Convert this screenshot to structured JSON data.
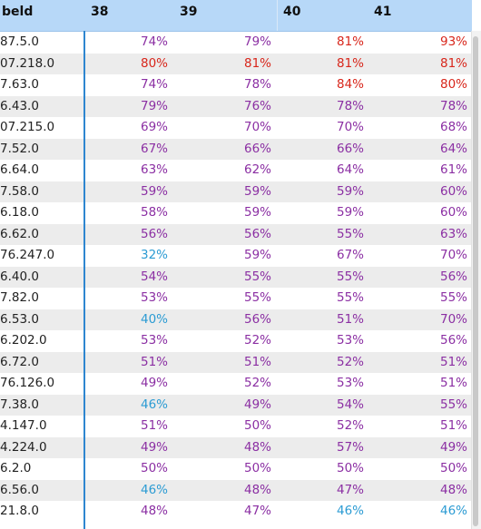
{
  "header": {
    "first_col": "beld",
    "weeks": [
      "38",
      "39",
      "40",
      "41"
    ]
  },
  "colors": {
    "purple": "#8b2fa3",
    "red": "#d8261b",
    "blue": "#2b9bd3",
    "header_bg": "#b7d8f8",
    "divider": "#2e86d0"
  },
  "rows": [
    {
      "label": "87.5.0",
      "values": [
        "74%",
        "79%",
        "81%",
        "93%"
      ],
      "colors": [
        "purple",
        "purple",
        "red",
        "red"
      ]
    },
    {
      "label": "07.218.0",
      "values": [
        "80%",
        "81%",
        "81%",
        "81%"
      ],
      "colors": [
        "red",
        "red",
        "red",
        "red"
      ]
    },
    {
      "label": "7.63.0",
      "values": [
        "74%",
        "78%",
        "84%",
        "80%"
      ],
      "colors": [
        "purple",
        "purple",
        "red",
        "red"
      ]
    },
    {
      "label": "6.43.0",
      "values": [
        "79%",
        "76%",
        "78%",
        "78%"
      ],
      "colors": [
        "purple",
        "purple",
        "purple",
        "purple"
      ]
    },
    {
      "label": "07.215.0",
      "values": [
        "69%",
        "70%",
        "70%",
        "68%"
      ],
      "colors": [
        "purple",
        "purple",
        "purple",
        "purple"
      ]
    },
    {
      "label": "7.52.0",
      "values": [
        "67%",
        "66%",
        "66%",
        "64%"
      ],
      "colors": [
        "purple",
        "purple",
        "purple",
        "purple"
      ]
    },
    {
      "label": "6.64.0",
      "values": [
        "63%",
        "62%",
        "64%",
        "61%"
      ],
      "colors": [
        "purple",
        "purple",
        "purple",
        "purple"
      ]
    },
    {
      "label": "7.58.0",
      "values": [
        "59%",
        "59%",
        "59%",
        "60%"
      ],
      "colors": [
        "purple",
        "purple",
        "purple",
        "purple"
      ]
    },
    {
      "label": "6.18.0",
      "values": [
        "58%",
        "59%",
        "59%",
        "60%"
      ],
      "colors": [
        "purple",
        "purple",
        "purple",
        "purple"
      ]
    },
    {
      "label": "6.62.0",
      "values": [
        "56%",
        "56%",
        "55%",
        "63%"
      ],
      "colors": [
        "purple",
        "purple",
        "purple",
        "purple"
      ]
    },
    {
      "label": "76.247.0",
      "values": [
        "32%",
        "59%",
        "67%",
        "70%"
      ],
      "colors": [
        "blue",
        "purple",
        "purple",
        "purple"
      ]
    },
    {
      "label": "6.40.0",
      "values": [
        "54%",
        "55%",
        "55%",
        "56%"
      ],
      "colors": [
        "purple",
        "purple",
        "purple",
        "purple"
      ]
    },
    {
      "label": "7.82.0",
      "values": [
        "53%",
        "55%",
        "55%",
        "55%"
      ],
      "colors": [
        "purple",
        "purple",
        "purple",
        "purple"
      ]
    },
    {
      "label": "6.53.0",
      "values": [
        "40%",
        "56%",
        "51%",
        "70%"
      ],
      "colors": [
        "blue",
        "purple",
        "purple",
        "purple"
      ]
    },
    {
      "label": "6.202.0",
      "values": [
        "53%",
        "52%",
        "53%",
        "56%"
      ],
      "colors": [
        "purple",
        "purple",
        "purple",
        "purple"
      ]
    },
    {
      "label": "6.72.0",
      "values": [
        "51%",
        "51%",
        "52%",
        "51%"
      ],
      "colors": [
        "purple",
        "purple",
        "purple",
        "purple"
      ]
    },
    {
      "label": "76.126.0",
      "values": [
        "49%",
        "52%",
        "53%",
        "51%"
      ],
      "colors": [
        "purple",
        "purple",
        "purple",
        "purple"
      ]
    },
    {
      "label": "7.38.0",
      "values": [
        "46%",
        "49%",
        "54%",
        "55%"
      ],
      "colors": [
        "blue",
        "purple",
        "purple",
        "purple"
      ]
    },
    {
      "label": "4.147.0",
      "values": [
        "51%",
        "50%",
        "52%",
        "51%"
      ],
      "colors": [
        "purple",
        "purple",
        "purple",
        "purple"
      ]
    },
    {
      "label": "4.224.0",
      "values": [
        "49%",
        "48%",
        "57%",
        "49%"
      ],
      "colors": [
        "purple",
        "purple",
        "purple",
        "purple"
      ]
    },
    {
      "label": "6.2.0",
      "values": [
        "50%",
        "50%",
        "50%",
        "50%"
      ],
      "colors": [
        "purple",
        "purple",
        "purple",
        "purple"
      ]
    },
    {
      "label": "6.56.0",
      "values": [
        "46%",
        "48%",
        "47%",
        "48%"
      ],
      "colors": [
        "blue",
        "purple",
        "purple",
        "purple"
      ]
    },
    {
      "label": "21.8.0",
      "values": [
        "48%",
        "47%",
        "46%",
        "46%"
      ],
      "colors": [
        "purple",
        "purple",
        "blue",
        "blue"
      ]
    }
  ]
}
